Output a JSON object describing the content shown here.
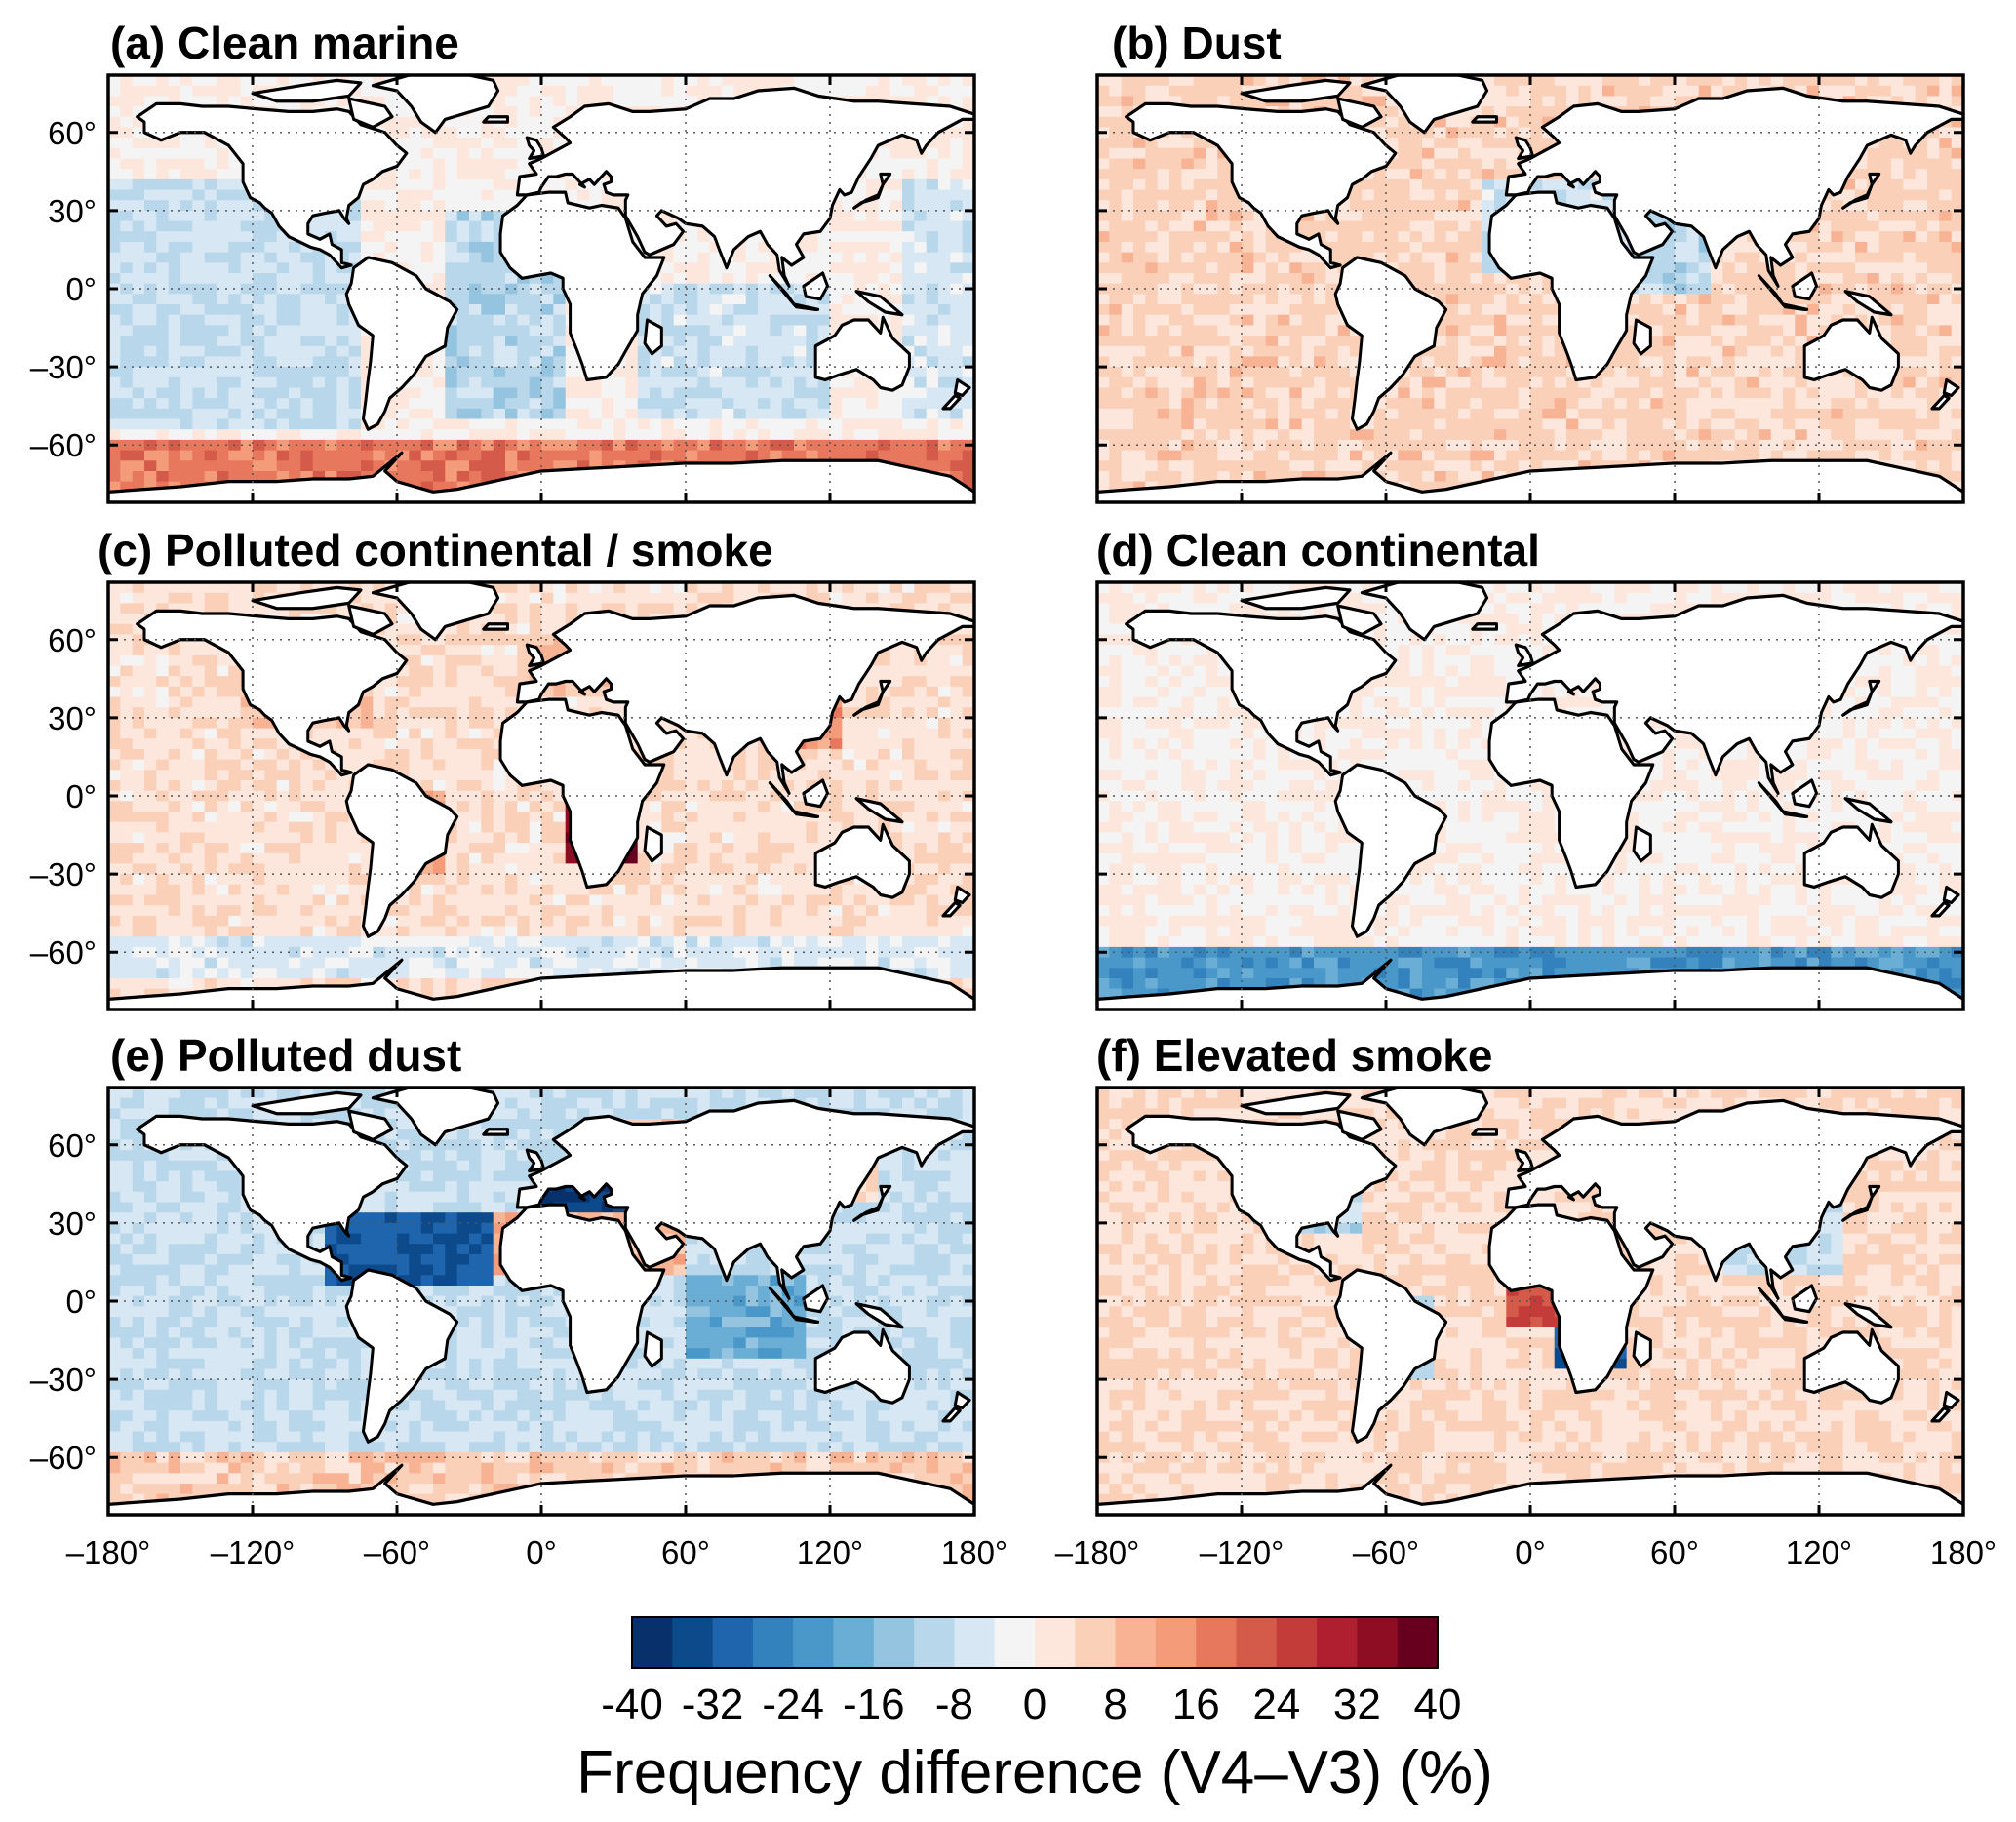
{
  "figure": {
    "colorbar": {
      "ticks": [
        "-40",
        "-32",
        "-24",
        "-16",
        "-8",
        "0",
        "8",
        "16",
        "24",
        "32",
        "40"
      ],
      "vmin": -40,
      "vmax": 40,
      "colors": [
        "#08306b",
        "#0d4a8c",
        "#1f65ad",
        "#3381bd",
        "#4a98c9",
        "#6aaed6",
        "#94c4df",
        "#b8d7ea",
        "#d7e7f3",
        "#f4f4f4",
        "#fde7dc",
        "#fbd0b9",
        "#f7b394",
        "#f49c7a",
        "#e7785d",
        "#d45a4a",
        "#c43c39",
        "#af1f2f",
        "#8f0d23",
        "#67001f"
      ],
      "title": "Frequency difference (V4–V3) (%)"
    },
    "axes": {
      "lon_ticks": [
        "–180°",
        "–120°",
        "–60°",
        "0°",
        "60°",
        "120°",
        "180°"
      ],
      "lat_ticks": [
        "60°",
        "30°",
        "0°",
        "–30°",
        "–60°"
      ]
    }
  },
  "chart_data": [
    {
      "type": "heatmap",
      "title": "(a) Clean marine",
      "xlim": [
        -180,
        180
      ],
      "ylim": [
        -82,
        82
      ],
      "background": 0,
      "regions": [
        {
          "lon": [
            -180,
            180
          ],
          "lat": [
            -82,
            -60
          ],
          "value": 18
        },
        {
          "lon": [
            -180,
            -75
          ],
          "lat": [
            -55,
            40
          ],
          "value": -8
        },
        {
          "lon": [
            -40,
            10
          ],
          "lat": [
            -50,
            30
          ],
          "value": -10
        },
        {
          "lon": [
            40,
            120
          ],
          "lat": [
            -50,
            0
          ],
          "value": -7
        },
        {
          "lon": [
            150,
            180
          ],
          "lat": [
            -50,
            40
          ],
          "value": -6
        }
      ]
    },
    {
      "type": "heatmap",
      "title": "(b) Dust",
      "xlim": [
        -180,
        180
      ],
      "ylim": [
        -82,
        82
      ],
      "background": 5,
      "regions": [
        {
          "lon": [
            -20,
            70
          ],
          "lat": [
            5,
            40
          ],
          "value": -7
        },
        {
          "lon": [
            40,
            75
          ],
          "lat": [
            0,
            30
          ],
          "value": -10
        }
      ]
    },
    {
      "type": "heatmap",
      "title": "(c) Polluted continental / smoke",
      "xlim": [
        -180,
        180
      ],
      "ylim": [
        -82,
        82
      ],
      "background": 3,
      "regions": [
        {
          "lon": [
            -125,
            -70
          ],
          "lat": [
            25,
            55
          ],
          "value": 9
        },
        {
          "lon": [
            -70,
            -40
          ],
          "lat": [
            -30,
            0
          ],
          "value": 13
        },
        {
          "lon": [
            10,
            40
          ],
          "lat": [
            -25,
            0
          ],
          "value": 36
        },
        {
          "lon": [
            100,
            125
          ],
          "lat": [
            20,
            40
          ],
          "value": 14
        },
        {
          "lon": [
            -10,
            60
          ],
          "lat": [
            40,
            60
          ],
          "value": 8
        },
        {
          "lon": [
            -180,
            180
          ],
          "lat": [
            -70,
            -55
          ],
          "value": -5
        }
      ]
    },
    {
      "type": "heatmap",
      "title": "(d) Clean continental",
      "xlim": [
        -180,
        180
      ],
      "ylim": [
        -82,
        82
      ],
      "background": 0,
      "regions": [
        {
          "lon": [
            -180,
            180
          ],
          "lat": [
            -82,
            -60
          ],
          "value": -22
        }
      ]
    },
    {
      "type": "heatmap",
      "title": "(e) Polluted dust",
      "xlim": [
        -180,
        180
      ],
      "ylim": [
        -82,
        82
      ],
      "background": -8,
      "regions": [
        {
          "lon": [
            -90,
            -20
          ],
          "lat": [
            5,
            35
          ],
          "value": -32
        },
        {
          "lon": [
            0,
            40
          ],
          "lat": [
            30,
            45
          ],
          "value": -36
        },
        {
          "lon": [
            -20,
            60
          ],
          "lat": [
            10,
            35
          ],
          "value": 10
        },
        {
          "lon": [
            30,
            140
          ],
          "lat": [
            40,
            70
          ],
          "value": 5
        },
        {
          "lon": [
            -180,
            180
          ],
          "lat": [
            -82,
            -60
          ],
          "value": 6
        },
        {
          "lon": [
            60,
            110
          ],
          "lat": [
            -20,
            10
          ],
          "value": -18
        }
      ]
    },
    {
      "type": "heatmap",
      "title": "(f) Elevated smoke",
      "xlim": [
        -180,
        180
      ],
      "ylim": [
        -82,
        82
      ],
      "background": 4,
      "regions": [
        {
          "lon": [
            10,
            40
          ],
          "lat": [
            -25,
            -5
          ],
          "value": -32
        },
        {
          "lon": [
            -10,
            15
          ],
          "lat": [
            -10,
            5
          ],
          "value": 24
        },
        {
          "lon": [
            -70,
            -40
          ],
          "lat": [
            -30,
            0
          ],
          "value": -12
        },
        {
          "lon": [
            -100,
            -70
          ],
          "lat": [
            25,
            50
          ],
          "value": -10
        },
        {
          "lon": [
            80,
            130
          ],
          "lat": [
            10,
            40
          ],
          "value": -8
        }
      ]
    }
  ]
}
